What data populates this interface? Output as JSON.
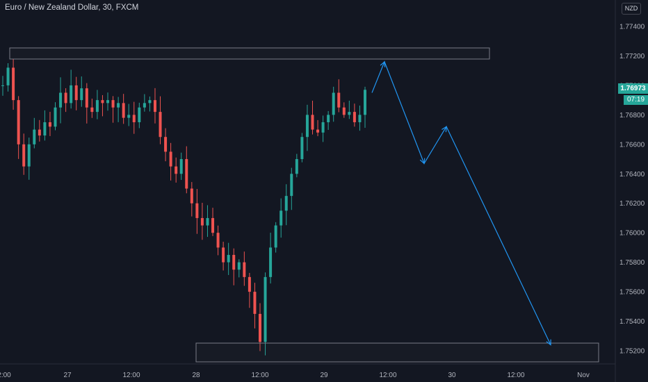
{
  "header": {
    "title": "Euro / New Zealand Dollar, 30, FXCM",
    "currency": "NZD"
  },
  "price_tag": {
    "last": "1.76973",
    "timer": "07:19"
  },
  "colors": {
    "up": "#26a69a",
    "down": "#ef5350",
    "projection": "#2196f3",
    "zone": "#787b86",
    "background": "#131722"
  },
  "chart_data": {
    "type": "candlestick",
    "title": "Euro / New Zealand Dollar, 30, FXCM",
    "ylim": [
      1.7512,
      1.7762
    ],
    "y_ticks": [
      "1.77400",
      "1.77200",
      "1.77000",
      "1.76800",
      "1.76600",
      "1.76400",
      "1.76200",
      "1.76000",
      "1.75800",
      "1.75600",
      "1.75400",
      "1.75200"
    ],
    "x_ticks": [
      "2:00",
      "27",
      "12:00",
      "28",
      "12:00",
      "29",
      "12:00",
      "30",
      "12:00",
      "Nov"
    ],
    "resistance_zone": {
      "top": 1.7725,
      "bottom": 1.7717
    },
    "support_zone": {
      "top": 1.7525,
      "bottom": 1.7513
    },
    "projection_path": [
      1.7695,
      1.7716,
      1.7647,
      1.7672,
      1.7524
    ],
    "closes": [
      1.77,
      1.7712,
      1.769,
      1.766,
      1.7645,
      1.766,
      1.767,
      1.7666,
      1.7675,
      1.7672,
      1.7685,
      1.7695,
      1.7688,
      1.77,
      1.769,
      1.7698,
      1.7685,
      1.7682,
      1.769,
      1.7688,
      1.769,
      1.7685,
      1.7688,
      1.7678,
      1.768,
      1.7675,
      1.7685,
      1.7688,
      1.769,
      1.7682,
      1.7665,
      1.7655,
      1.7645,
      1.764,
      1.765,
      1.763,
      1.762,
      1.761,
      1.7605,
      1.761,
      1.76,
      1.759,
      1.758,
      1.7585,
      1.7575,
      1.758,
      1.757,
      1.756,
      1.7545,
      1.7526,
      1.757,
      1.759,
      1.7605,
      1.7615,
      1.7625,
      1.764,
      1.765,
      1.7665,
      1.768,
      1.767,
      1.7668,
      1.7675,
      1.768,
      1.7695,
      1.7685,
      1.768,
      1.7682,
      1.7675,
      1.768,
      1.7697
    ]
  }
}
